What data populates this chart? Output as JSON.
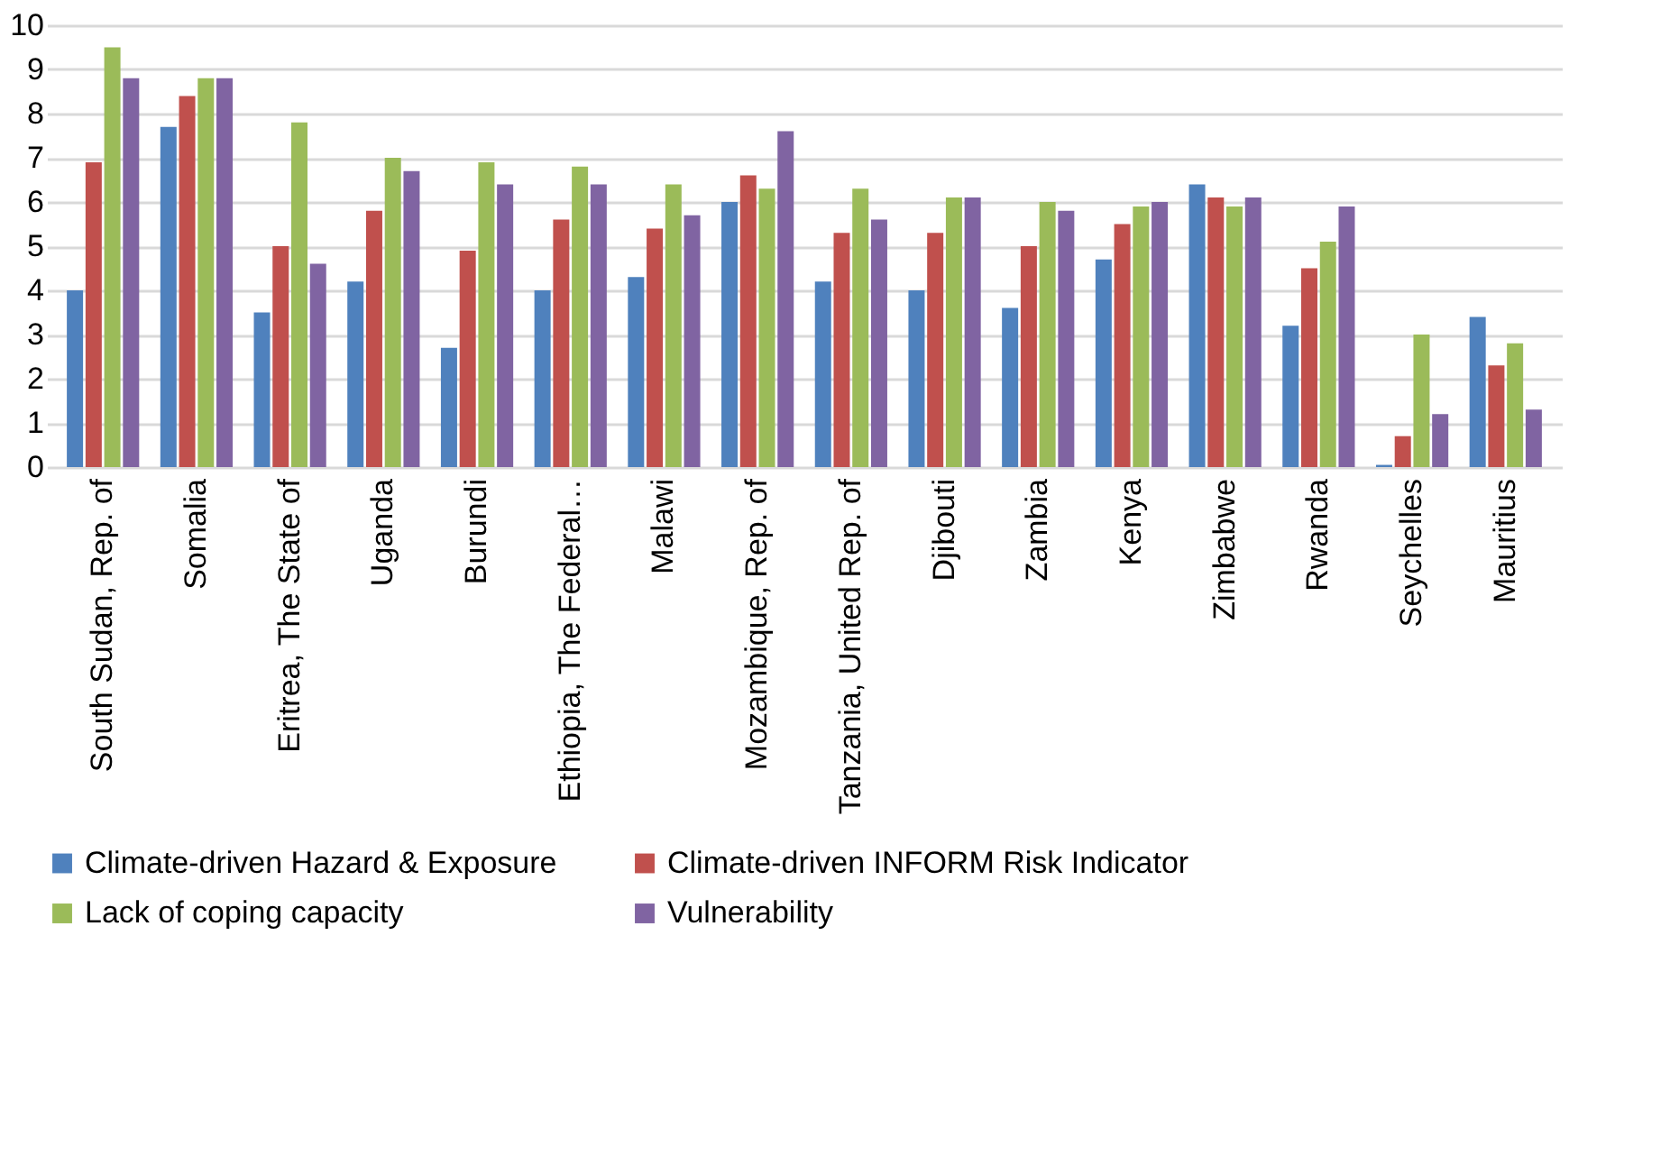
{
  "chart_data": {
    "type": "bar",
    "categories": [
      "South Sudan, Rep. of",
      "Somalia",
      "Eritrea, The State of",
      "Uganda",
      "Burundi",
      "Ethiopia, The Federal…",
      "Malawi",
      "Mozambique, Rep. of",
      "Tanzania, United Rep. of",
      "Djibouti",
      "Zambia",
      "Kenya",
      "Zimbabwe",
      "Rwanda",
      "Seychelles",
      "Mauritius"
    ],
    "series": [
      {
        "name": "Climate-driven Hazard & Exposure",
        "color": "#4f81bd",
        "values": [
          4.0,
          7.7,
          3.5,
          4.2,
          2.7,
          4.0,
          4.3,
          6.0,
          4.2,
          4.0,
          3.6,
          4.7,
          6.4,
          3.2,
          0.05,
          3.4
        ]
      },
      {
        "name": "Climate-driven INFORM Risk Indicator",
        "color": "#c0504d",
        "values": [
          6.9,
          8.4,
          5.0,
          5.8,
          4.9,
          5.6,
          5.4,
          6.6,
          5.3,
          5.3,
          5.0,
          5.5,
          6.1,
          4.5,
          0.7,
          2.3
        ]
      },
      {
        "name": "Lack of coping capacity",
        "color": "#9bbb59",
        "values": [
          9.5,
          8.8,
          7.8,
          7.0,
          6.9,
          6.8,
          6.4,
          6.3,
          6.3,
          6.1,
          6.0,
          5.9,
          5.9,
          5.1,
          3.0,
          2.8
        ]
      },
      {
        "name": "Vulnerability",
        "color": "#8064a2",
        "values": [
          8.8,
          8.8,
          4.6,
          6.7,
          6.4,
          6.4,
          5.7,
          7.6,
          5.6,
          6.1,
          5.8,
          6.0,
          6.1,
          5.9,
          1.2,
          1.3
        ]
      }
    ],
    "ylim": [
      0,
      10
    ],
    "yticks": [
      0,
      1,
      2,
      3,
      4,
      5,
      6,
      7,
      8,
      9,
      10
    ],
    "grid": "y",
    "legend": "bottom"
  }
}
